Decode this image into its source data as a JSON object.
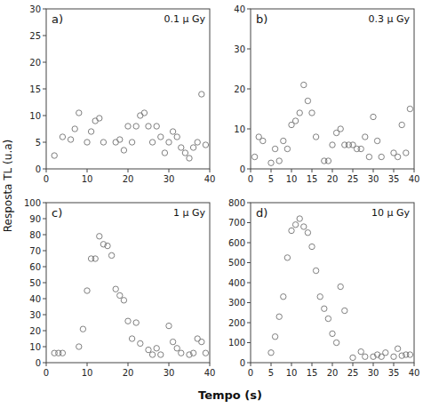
{
  "chart_data": [
    {
      "type": "scatter",
      "annotations": [
        "a)",
        "0.1 μ Gy"
      ],
      "ylabel": "Resposta TL (u.a)",
      "xlabel": "Tempo (s)",
      "color": "#808080",
      "marker": "circle",
      "xlim": [
        0,
        40
      ],
      "ylim": [
        0,
        30
      ],
      "xticks": [
        0,
        10,
        20,
        30,
        40
      ],
      "yticks": [
        0,
        5,
        10,
        15,
        20,
        25,
        30
      ],
      "x": [
        2,
        4,
        6,
        7,
        8,
        10,
        11,
        12,
        13,
        14,
        17,
        18,
        19,
        20,
        21,
        22,
        23,
        24,
        25,
        26,
        27,
        28,
        29,
        30,
        31,
        32,
        33,
        34,
        35,
        36,
        37,
        38,
        39
      ],
      "values": [
        2.5,
        6,
        5.5,
        7.5,
        10.5,
        5,
        7,
        9,
        9.5,
        5,
        5,
        5.5,
        3.5,
        8,
        5,
        8,
        10,
        10.5,
        8,
        5,
        8,
        6,
        3,
        5,
        7,
        6,
        4,
        3,
        2,
        4,
        5,
        14,
        4.5
      ]
    },
    {
      "type": "scatter",
      "annotations": [
        "b)",
        "0.3 μ Gy"
      ],
      "color": "#808080",
      "marker": "circle",
      "xlim": [
        0,
        40
      ],
      "ylim": [
        0,
        40
      ],
      "xticks": [
        0,
        5,
        10,
        15,
        20,
        25,
        30,
        35,
        40
      ],
      "yticks": [
        0,
        10,
        20,
        30,
        40
      ],
      "x": [
        1,
        2,
        3,
        5,
        6,
        7,
        8,
        9,
        10,
        11,
        12,
        13,
        14,
        15,
        16,
        18,
        19,
        20,
        21,
        22,
        23,
        24,
        25,
        26,
        27,
        28,
        29,
        30,
        31,
        32,
        35,
        36,
        37,
        38,
        39
      ],
      "values": [
        3,
        8,
        7,
        1.5,
        5,
        2,
        7,
        5,
        11,
        12,
        14,
        21,
        17,
        14,
        8,
        2,
        2,
        6,
        9,
        10,
        6,
        6,
        6,
        5,
        5,
        8,
        3,
        13,
        7,
        3,
        4,
        3,
        11,
        4,
        15
      ]
    },
    {
      "type": "scatter",
      "annotations": [
        "c)",
        "1 μ Gy"
      ],
      "color": "#808080",
      "marker": "circle",
      "xlim": [
        0,
        40
      ],
      "ylim": [
        0,
        100
      ],
      "xticks": [
        0,
        10,
        20,
        30,
        40
      ],
      "yticks": [
        0,
        10,
        20,
        30,
        40,
        50,
        60,
        70,
        80,
        90,
        100
      ],
      "x": [
        2,
        3,
        4,
        8,
        9,
        10,
        11,
        12,
        13,
        14,
        15,
        16,
        17,
        18,
        19,
        20,
        21,
        22,
        23,
        25,
        26,
        27,
        28,
        30,
        31,
        32,
        33,
        35,
        36,
        37,
        38,
        39
      ],
      "values": [
        6,
        6,
        6,
        10,
        21,
        45,
        65,
        65,
        79,
        74,
        73,
        67,
        46,
        42,
        39,
        26,
        15,
        25,
        12,
        8,
        5,
        9,
        5,
        23,
        13,
        9,
        6,
        5,
        6,
        15,
        13,
        6
      ]
    },
    {
      "type": "scatter",
      "annotations": [
        "d)",
        "10 μ Gy"
      ],
      "color": "#808080",
      "marker": "circle",
      "xlim": [
        0,
        40
      ],
      "ylim": [
        0,
        800
      ],
      "xticks": [
        0,
        5,
        10,
        15,
        20,
        25,
        30,
        35,
        40
      ],
      "yticks": [
        0,
        100,
        200,
        300,
        400,
        500,
        600,
        700,
        800
      ],
      "x": [
        5,
        6,
        7,
        8,
        9,
        10,
        11,
        12,
        13,
        14,
        15,
        16,
        17,
        18,
        19,
        20,
        21,
        22,
        23,
        25,
        27,
        28,
        30,
        31,
        32,
        33,
        35,
        36,
        37,
        38,
        39
      ],
      "values": [
        50,
        130,
        230,
        330,
        525,
        660,
        690,
        720,
        680,
        650,
        580,
        460,
        330,
        270,
        220,
        145,
        100,
        380,
        260,
        25,
        55,
        30,
        30,
        40,
        30,
        50,
        30,
        70,
        35,
        40,
        40
      ]
    }
  ]
}
